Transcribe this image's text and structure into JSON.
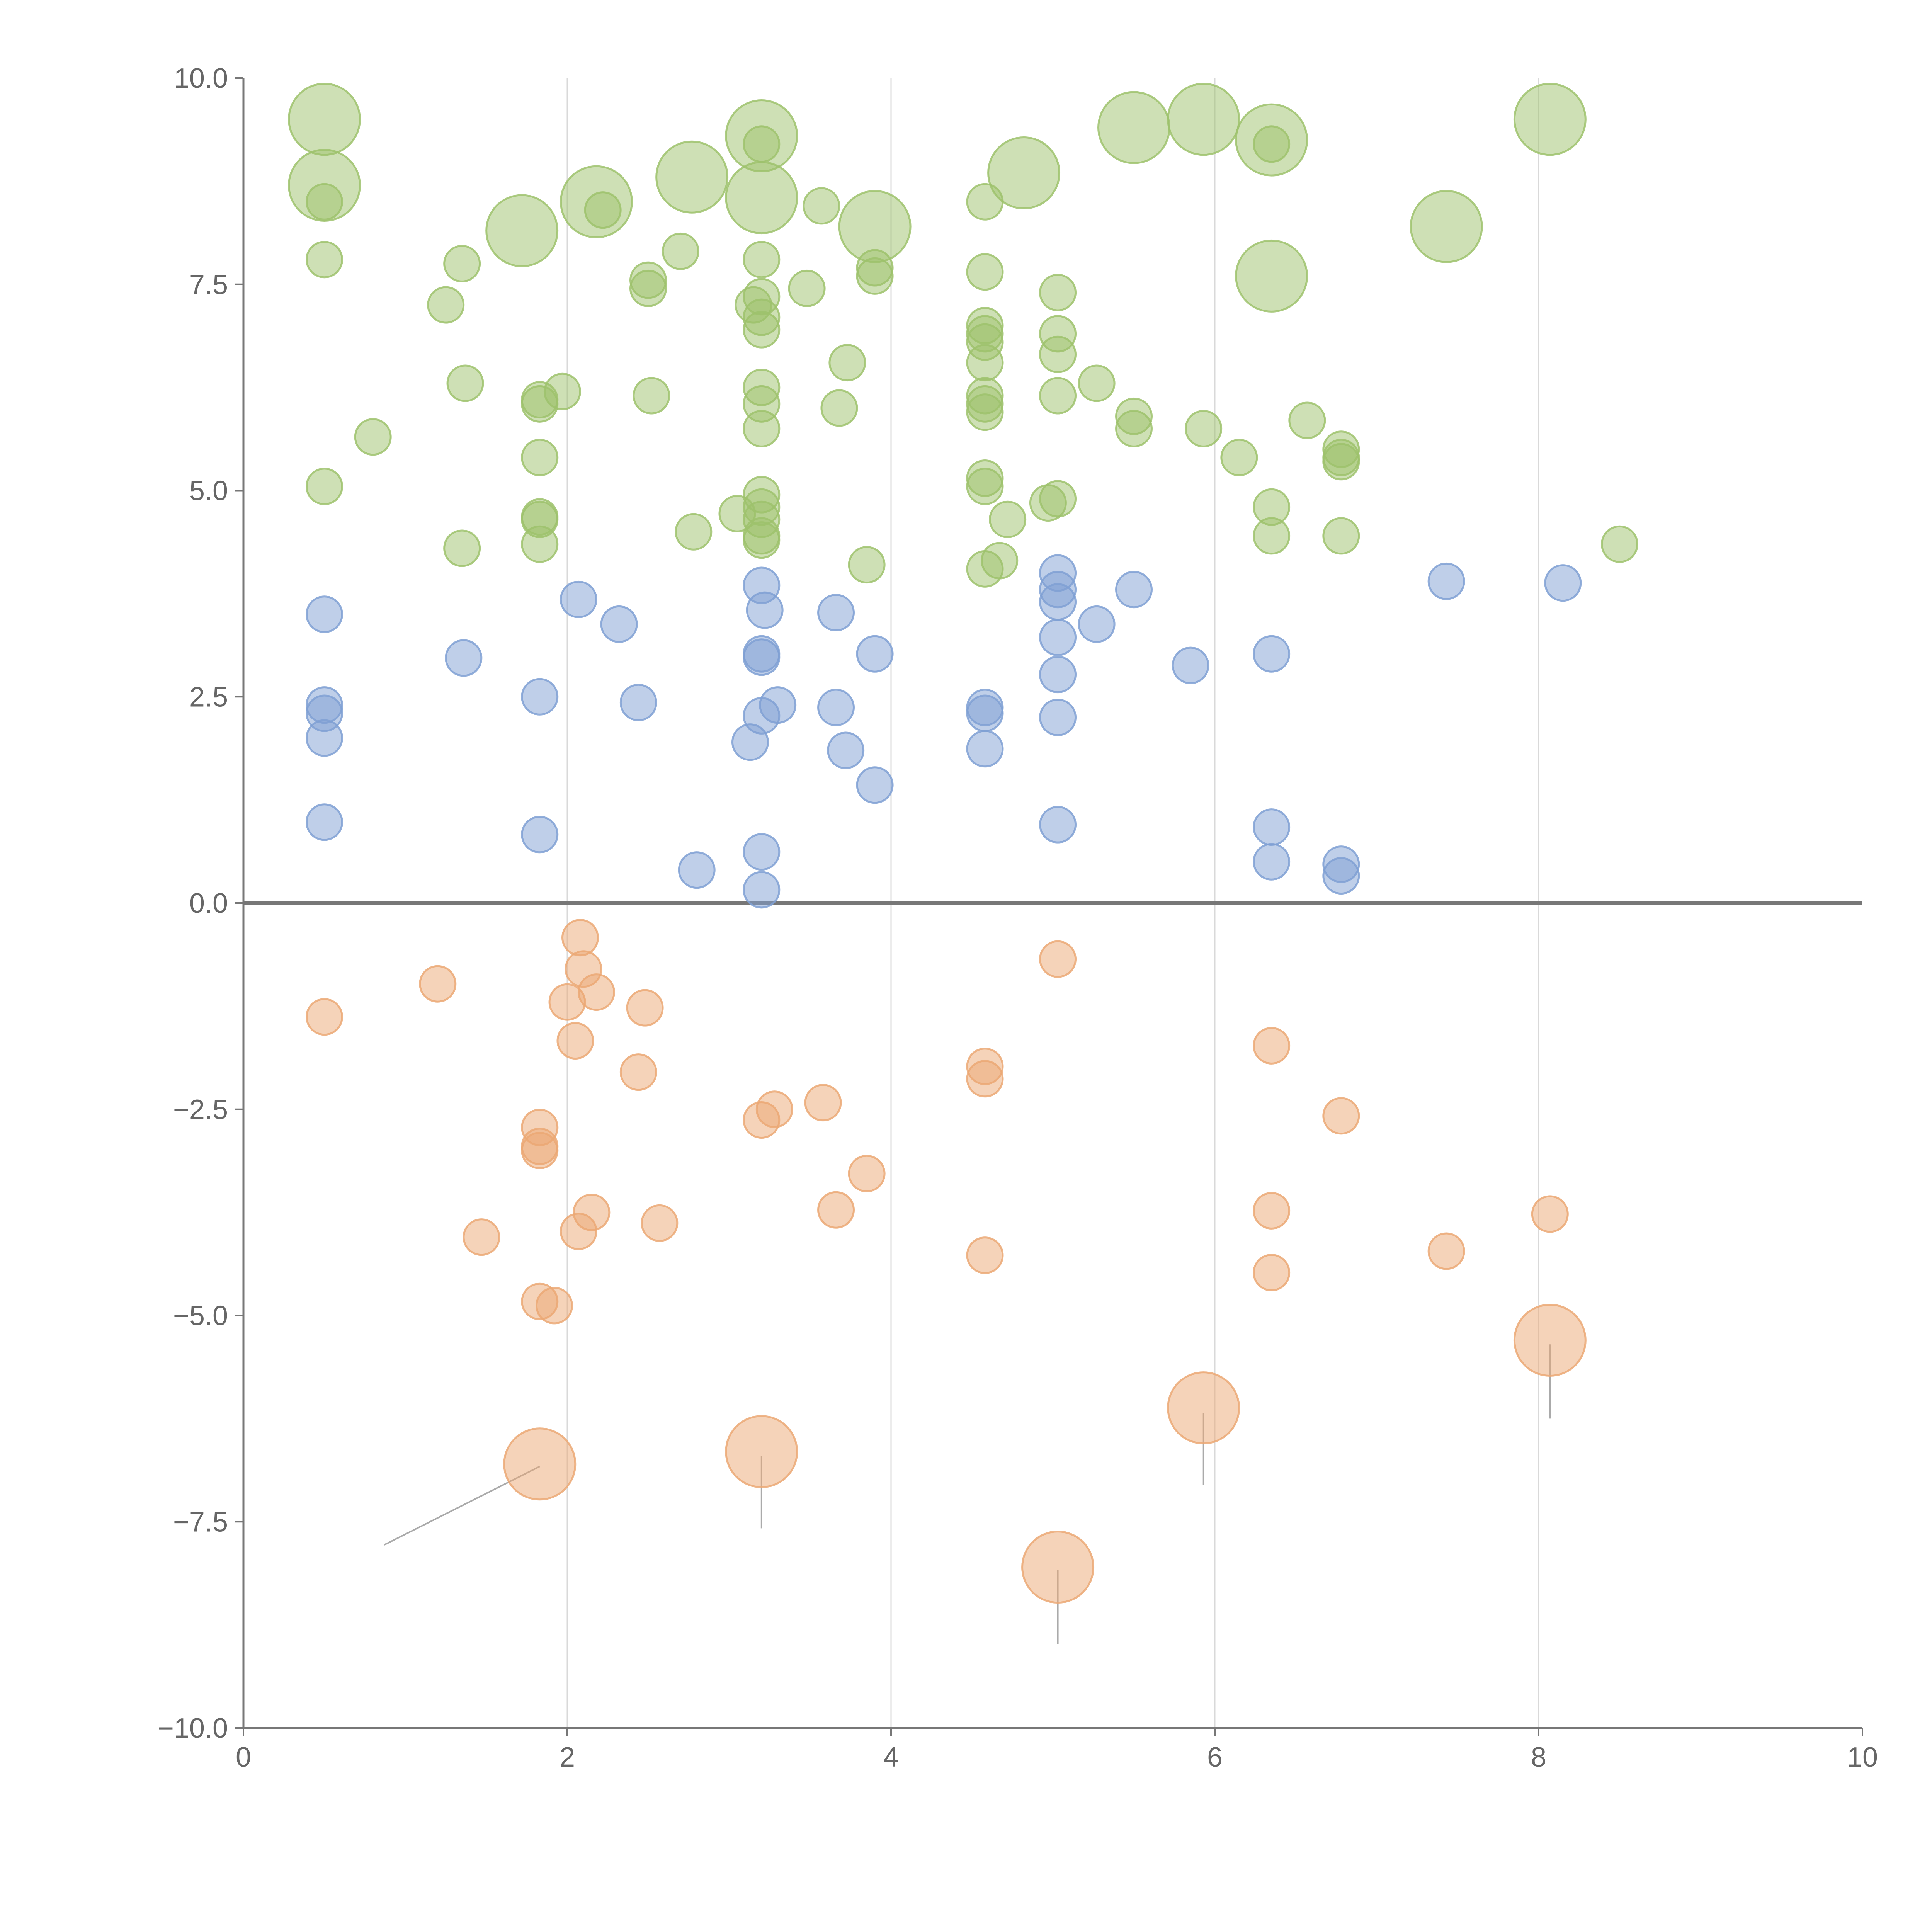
{
  "chart_data": {
    "type": "scatter",
    "subtype": "bubble",
    "title": "",
    "xlabel": "",
    "ylabel": "",
    "xlim": [
      0,
      10
    ],
    "ylim": [
      -10,
      10
    ],
    "x_ticks": [
      0,
      2,
      4,
      6,
      8,
      10
    ],
    "x_tick_labels": [
      "0",
      "2",
      "4",
      "6",
      "8",
      "10"
    ],
    "y_ticks": [
      -10,
      -7.5,
      -5,
      -2.5,
      0,
      2.5,
      5,
      7.5,
      10
    ],
    "y_tick_labels": [
      "−10.0",
      "−7.5",
      "−5.0",
      "−2.5",
      "0.0",
      "2.5",
      "5.0",
      "7.5",
      "10.0"
    ],
    "vertical_gridlines_at": [
      2,
      4,
      6,
      8
    ],
    "reference_line_y": 0,
    "legend": "none",
    "series": [
      {
        "name": "green",
        "color": "#9dc26c",
        "points": [
          [
            0.5,
            9.5,
            2
          ],
          [
            0.5,
            8.7,
            2
          ],
          [
            0.5,
            8.5,
            1
          ],
          [
            0.5,
            7.8,
            1
          ],
          [
            0.5,
            5.05,
            1
          ],
          [
            0.8,
            5.65,
            1
          ],
          [
            1.25,
            7.25,
            1
          ],
          [
            1.35,
            7.75,
            1
          ],
          [
            1.37,
            6.3,
            1
          ],
          [
            1.35,
            4.3,
            1
          ],
          [
            1.72,
            8.15,
            2
          ],
          [
            1.83,
            6.1,
            1
          ],
          [
            1.83,
            6.05,
            1
          ],
          [
            1.83,
            5.4,
            1
          ],
          [
            1.83,
            4.68,
            1
          ],
          [
            1.83,
            4.65,
            1
          ],
          [
            1.83,
            4.35,
            1
          ],
          [
            1.97,
            6.2,
            1
          ],
          [
            2.18,
            8.5,
            2
          ],
          [
            2.22,
            8.4,
            1
          ],
          [
            2.5,
            7.55,
            1
          ],
          [
            2.5,
            7.45,
            1
          ],
          [
            2.52,
            6.15,
            1
          ],
          [
            2.7,
            7.9,
            1
          ],
          [
            2.77,
            8.8,
            2
          ],
          [
            2.78,
            4.5,
            1
          ],
          [
            3.05,
            4.72,
            1
          ],
          [
            3.15,
            7.25,
            1
          ],
          [
            3.2,
            9.3,
            2
          ],
          [
            3.2,
            9.2,
            1
          ],
          [
            3.2,
            8.55,
            2
          ],
          [
            3.2,
            7.8,
            1
          ],
          [
            3.2,
            7.35,
            1
          ],
          [
            3.2,
            7.1,
            1
          ],
          [
            3.2,
            6.95,
            1
          ],
          [
            3.2,
            6.25,
            1
          ],
          [
            3.2,
            6.05,
            1
          ],
          [
            3.2,
            5.75,
            1
          ],
          [
            3.2,
            4.95,
            1
          ],
          [
            3.2,
            4.8,
            1
          ],
          [
            3.2,
            4.65,
            1
          ],
          [
            3.2,
            4.45,
            1
          ],
          [
            3.2,
            4.4,
            1
          ],
          [
            3.48,
            7.45,
            1
          ],
          [
            3.57,
            8.45,
            1
          ],
          [
            3.68,
            6.0,
            1
          ],
          [
            3.73,
            6.55,
            1
          ],
          [
            3.85,
            4.1,
            1
          ],
          [
            3.9,
            8.2,
            2
          ],
          [
            3.9,
            7.7,
            1
          ],
          [
            3.9,
            7.6,
            1
          ],
          [
            4.58,
            8.5,
            1
          ],
          [
            4.58,
            7.65,
            1
          ],
          [
            4.58,
            7.0,
            1
          ],
          [
            4.58,
            6.9,
            1
          ],
          [
            4.58,
            6.8,
            1
          ],
          [
            4.58,
            6.55,
            1
          ],
          [
            4.58,
            6.15,
            1
          ],
          [
            4.58,
            6.05,
            1
          ],
          [
            4.58,
            5.95,
            1
          ],
          [
            4.58,
            5.15,
            1
          ],
          [
            4.58,
            5.05,
            1
          ],
          [
            4.58,
            4.05,
            1
          ],
          [
            4.67,
            4.15,
            1
          ],
          [
            4.72,
            4.65,
            1
          ],
          [
            4.82,
            8.85,
            2
          ],
          [
            4.97,
            4.85,
            1
          ],
          [
            5.03,
            7.4,
            1
          ],
          [
            5.03,
            6.9,
            1
          ],
          [
            5.03,
            6.65,
            1
          ],
          [
            5.03,
            6.15,
            1
          ],
          [
            5.03,
            4.9,
            1
          ],
          [
            5.27,
            6.3,
            1
          ],
          [
            5.5,
            9.4,
            2
          ],
          [
            5.5,
            5.9,
            1
          ],
          [
            5.5,
            5.75,
            1
          ],
          [
            5.93,
            9.5,
            2
          ],
          [
            5.93,
            5.75,
            1
          ],
          [
            6.15,
            5.4,
            1
          ],
          [
            6.35,
            9.25,
            2
          ],
          [
            6.35,
            9.2,
            1
          ],
          [
            6.35,
            7.6,
            2
          ],
          [
            6.35,
            4.8,
            1
          ],
          [
            6.35,
            4.45,
            1
          ],
          [
            6.57,
            5.85,
            1
          ],
          [
            6.78,
            5.5,
            1
          ],
          [
            6.78,
            5.4,
            1
          ],
          [
            6.78,
            5.35,
            1
          ],
          [
            6.78,
            4.45,
            1
          ],
          [
            7.43,
            8.2,
            2
          ],
          [
            8.07,
            9.5,
            2
          ],
          [
            8.5,
            4.35,
            1
          ]
        ]
      },
      {
        "name": "blue",
        "color": "#7fa0d4",
        "points": [
          [
            0.5,
            3.5,
            1
          ],
          [
            0.5,
            2.4,
            1
          ],
          [
            0.5,
            2.3,
            1
          ],
          [
            0.5,
            2.0,
            1
          ],
          [
            0.5,
            0.98,
            1
          ],
          [
            1.36,
            2.97,
            1
          ],
          [
            1.83,
            2.5,
            1
          ],
          [
            1.83,
            0.83,
            1
          ],
          [
            2.07,
            3.68,
            1
          ],
          [
            2.32,
            3.38,
            1
          ],
          [
            2.44,
            2.43,
            1
          ],
          [
            2.8,
            0.4,
            1
          ],
          [
            3.13,
            1.95,
            1
          ],
          [
            3.2,
            3.85,
            1
          ],
          [
            3.22,
            3.55,
            1
          ],
          [
            3.2,
            3.02,
            1
          ],
          [
            3.2,
            2.98,
            1
          ],
          [
            3.2,
            2.27,
            1
          ],
          [
            3.3,
            2.4,
            1
          ],
          [
            3.2,
            0.62,
            1
          ],
          [
            3.2,
            0.16,
            1
          ],
          [
            3.66,
            3.52,
            1
          ],
          [
            3.66,
            2.37,
            1
          ],
          [
            3.72,
            1.85,
            1
          ],
          [
            3.9,
            3.02,
            1
          ],
          [
            3.9,
            1.43,
            1
          ],
          [
            4.58,
            2.37,
            1
          ],
          [
            4.58,
            2.3,
            1
          ],
          [
            4.58,
            1.87,
            1
          ],
          [
            5.03,
            4.0,
            1
          ],
          [
            5.03,
            3.8,
            1
          ],
          [
            5.03,
            3.65,
            1
          ],
          [
            5.03,
            3.22,
            1
          ],
          [
            5.03,
            2.77,
            1
          ],
          [
            5.03,
            2.25,
            1
          ],
          [
            5.03,
            0.95,
            1
          ],
          [
            5.27,
            3.38,
            1
          ],
          [
            5.5,
            3.8,
            1
          ],
          [
            5.85,
            2.88,
            1
          ],
          [
            6.35,
            3.02,
            1
          ],
          [
            6.35,
            0.92,
            1
          ],
          [
            6.35,
            0.5,
            1
          ],
          [
            6.78,
            0.47,
            1
          ],
          [
            6.78,
            0.33,
            1
          ],
          [
            7.43,
            3.9,
            1
          ],
          [
            8.15,
            3.88,
            1
          ]
        ]
      },
      {
        "name": "orange",
        "color": "#eba874",
        "points": [
          [
            0.5,
            -1.38,
            1
          ],
          [
            1.2,
            -0.98,
            1
          ],
          [
            1.47,
            -4.05,
            1
          ],
          [
            1.83,
            -2.72,
            1
          ],
          [
            1.83,
            -2.95,
            1
          ],
          [
            1.83,
            -3.0,
            1
          ],
          [
            1.83,
            -4.83,
            1
          ],
          [
            1.92,
            -4.88,
            1
          ],
          [
            1.83,
            -6.8,
            2
          ],
          [
            2.0,
            -1.2,
            1
          ],
          [
            2.05,
            -1.67,
            1
          ],
          [
            2.08,
            -0.42,
            1
          ],
          [
            2.1,
            -0.8,
            1
          ],
          [
            2.18,
            -1.08,
            1
          ],
          [
            2.15,
            -3.75,
            1
          ],
          [
            2.07,
            -3.98,
            1
          ],
          [
            2.44,
            -2.05,
            1
          ],
          [
            2.48,
            -1.27,
            1
          ],
          [
            2.57,
            -3.88,
            1
          ],
          [
            3.2,
            -2.63,
            1
          ],
          [
            3.28,
            -2.5,
            1
          ],
          [
            3.2,
            -6.65,
            2
          ],
          [
            3.58,
            -2.42,
            1
          ],
          [
            3.66,
            -3.72,
            1
          ],
          [
            3.85,
            -3.28,
            1
          ],
          [
            4.58,
            -1.98,
            1
          ],
          [
            4.58,
            -2.13,
            1
          ],
          [
            4.58,
            -4.27,
            1
          ],
          [
            5.03,
            -0.68,
            1
          ],
          [
            5.03,
            -8.05,
            2
          ],
          [
            5.93,
            -6.12,
            2
          ],
          [
            6.35,
            -1.73,
            1
          ],
          [
            6.35,
            -3.73,
            1
          ],
          [
            6.35,
            -4.48,
            1
          ],
          [
            6.78,
            -2.58,
            1
          ],
          [
            7.43,
            -4.22,
            1
          ],
          [
            8.07,
            -3.77,
            1
          ],
          [
            8.07,
            -5.3,
            2
          ]
        ]
      }
    ],
    "leader_lines": [
      [
        1.83,
        -6.83,
        0.87,
        -7.78
      ],
      [
        3.2,
        -6.7,
        3.2,
        -7.58
      ],
      [
        5.03,
        -8.08,
        5.03,
        -8.98
      ],
      [
        5.93,
        -6.18,
        5.93,
        -7.05
      ],
      [
        8.07,
        -5.35,
        8.07,
        -6.25
      ]
    ]
  }
}
